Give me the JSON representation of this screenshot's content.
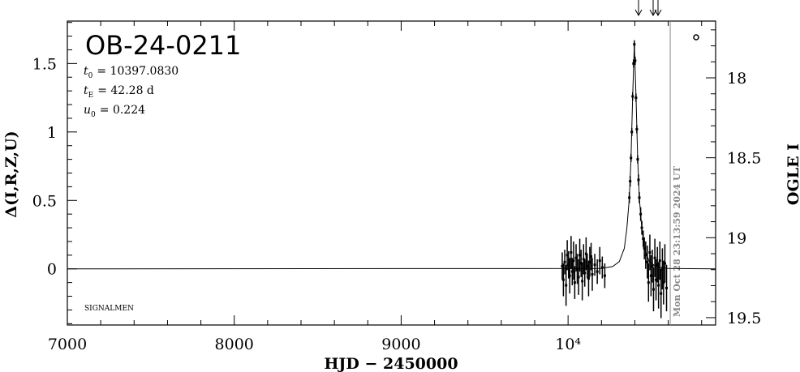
{
  "chart_data": {
    "type": "scatter",
    "title": "OB-24-0211",
    "params": [
      {
        "name": "t",
        "sub": "0",
        "value": "= 10397.0830"
      },
      {
        "name": "t",
        "sub": "E",
        "value": "= 42.28 d"
      },
      {
        "name": "u",
        "sub": "0",
        "value": "= 0.224"
      }
    ],
    "annotation": "SIGNALMEN",
    "xlabel": "HJD − 2450000",
    "ylabel": "Δ(I,R,Z,U)",
    "y2label": "OGLE I",
    "xlim": [
      7000,
      10884
    ],
    "ylim": [
      -0.41,
      1.81
    ],
    "y2lim": [
      19.546,
      17.645
    ],
    "xticks": [
      7000,
      8000,
      9000,
      {
        "value": 10000,
        "label": "10⁴"
      }
    ],
    "yticks": [
      0,
      0.5,
      1,
      1.5
    ],
    "y2ticks": [
      18,
      18.5,
      19,
      19.5
    ],
    "xminor": [
      7200,
      7400,
      7600,
      7800,
      8200,
      8400,
      8600,
      8800,
      9200,
      9400,
      9600,
      9800,
      10200,
      10400,
      10600,
      10800
    ],
    "yminor": [
      -0.4,
      -0.3,
      -0.2,
      -0.1,
      0.1,
      0.2,
      0.3,
      0.4,
      0.6,
      0.7,
      0.8,
      0.9,
      1.1,
      1.2,
      1.3,
      1.4,
      1.6,
      1.7,
      1.8
    ],
    "y2minor": [
      17.7,
      17.8,
      17.9,
      18.1,
      18.2,
      18.3,
      18.4,
      18.6,
      18.7,
      18.8,
      18.9,
      19.1,
      19.2,
      19.3,
      19.4
    ],
    "series": [
      {
        "color": "#000000",
        "x": [
          9965,
          9972,
          9980,
          9988,
          9995,
          10003,
          10010,
          10018,
          10025,
          10033,
          10040,
          10048,
          10055,
          10063,
          10070,
          10078,
          10085,
          10093,
          10100,
          10108,
          10115,
          10123,
          10130,
          10138,
          10145,
          10160,
          10175,
          10190,
          10205,
          10220,
          10367,
          10372,
          10377,
          10382,
          10387,
          10392,
          10397,
          10402,
          10407,
          10412,
          10417,
          10422,
          10427,
          10435,
          10442,
          10450,
          10457,
          10465,
          10475,
          10482,
          10490,
          10497,
          10505,
          10512,
          10520,
          10527,
          10535,
          10542,
          10550,
          10557,
          10565,
          10572,
          10580,
          10590
        ],
        "values": [
          0.02,
          -0.08,
          0.05,
          -0.12,
          0.1,
          0.03,
          -0.05,
          0.12,
          -0.02,
          0.06,
          -0.1,
          0.08,
          0.0,
          -0.06,
          0.1,
          0.04,
          -0.09,
          0.07,
          -0.03,
          0.11,
          0.02,
          -0.07,
          0.05,
          0.09,
          -0.04,
          0.03,
          -0.02,
          0.06,
          0.01,
          -0.05,
          0.52,
          0.64,
          0.81,
          1.0,
          1.26,
          1.5,
          1.64,
          1.52,
          1.25,
          1.02,
          0.8,
          0.65,
          0.52,
          0.4,
          0.3,
          0.22,
          0.15,
          0.1,
          0.05,
          -0.1,
          0.12,
          -0.05,
          0.02,
          -0.15,
          0.08,
          -0.08,
          0.03,
          -0.12,
          0.06,
          -0.18,
          0.0,
          -0.1,
          0.04,
          -0.14
        ],
        "errors": [
          0.1,
          0.12,
          0.09,
          0.15,
          0.11,
          0.1,
          0.13,
          0.12,
          0.1,
          0.14,
          0.12,
          0.1,
          0.11,
          0.13,
          0.12,
          0.1,
          0.14,
          0.11,
          0.1,
          0.12,
          0.09,
          0.13,
          0.11,
          0.1,
          0.12,
          0.08,
          0.09,
          0.1,
          0.08,
          0.09,
          0.04,
          0.04,
          0.03,
          0.03,
          0.03,
          0.03,
          0.03,
          0.03,
          0.03,
          0.03,
          0.03,
          0.04,
          0.04,
          0.05,
          0.05,
          0.06,
          0.08,
          0.1,
          0.12,
          0.14,
          0.13,
          0.15,
          0.12,
          0.16,
          0.14,
          0.15,
          0.13,
          0.17,
          0.14,
          0.18,
          0.15,
          0.16,
          0.14,
          0.17
        ]
      }
    ],
    "model": {
      "color": "#000000",
      "x": [
        7000,
        10197,
        10267,
        10307,
        10337,
        10352,
        10367,
        10377,
        10387,
        10397,
        10407,
        10417,
        10427,
        10442,
        10457,
        10487,
        10527,
        10597,
        10884
      ],
      "values": [
        0,
        0.003,
        0.017,
        0.053,
        0.15,
        0.294,
        0.516,
        0.806,
        1.26,
        1.645,
        1.26,
        0.806,
        0.516,
        0.294,
        0.15,
        0.053,
        0.017,
        0.003,
        0
      ]
    },
    "date_line": {
      "x": 10612,
      "label": "Mon Oct 28 23:13:59 2024 UT",
      "color": "#888888"
    }
  }
}
